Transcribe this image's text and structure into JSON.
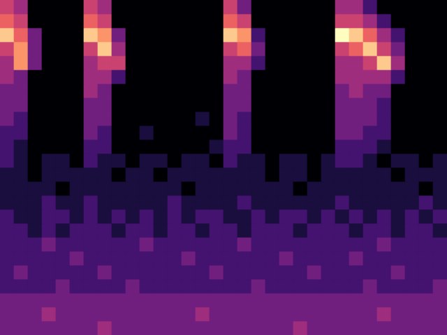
{
  "chart_data": {
    "type": "heatmap",
    "tick_labels": false,
    "grid": false,
    "zlim": [
      0,
      9
    ],
    "cells": [
      [
        5,
        4,
        0,
        0,
        0,
        0,
        5,
        4,
        0,
        0,
        0,
        0,
        0,
        0,
        0,
        0,
        5,
        3,
        0,
        0,
        0,
        0,
        0,
        0,
        4,
        4,
        2,
        0,
        0,
        0,
        0,
        0
      ],
      [
        6,
        5,
        0,
        0,
        0,
        0,
        6,
        5,
        0,
        0,
        0,
        0,
        0,
        0,
        0,
        0,
        6,
        5,
        0,
        0,
        0,
        0,
        0,
        0,
        5,
        5,
        4,
        2,
        0,
        0,
        0,
        0
      ],
      [
        8,
        6,
        3,
        0,
        0,
        0,
        8,
        7,
        3,
        0,
        0,
        0,
        0,
        0,
        0,
        0,
        8,
        7,
        2,
        0,
        0,
        0,
        0,
        0,
        9,
        8,
        6,
        4,
        2,
        0,
        0,
        0
      ],
      [
        5,
        7,
        3,
        0,
        0,
        0,
        5,
        8,
        4,
        0,
        0,
        0,
        0,
        0,
        0,
        0,
        5,
        6,
        3,
        0,
        0,
        0,
        0,
        0,
        5,
        6,
        8,
        5,
        3,
        0,
        0,
        0
      ],
      [
        4,
        7,
        3,
        0,
        0,
        0,
        4,
        5,
        5,
        0,
        0,
        0,
        0,
        0,
        0,
        0,
        4,
        4,
        2,
        0,
        0,
        0,
        0,
        0,
        4,
        4,
        5,
        8,
        4,
        0,
        0,
        0
      ],
      [
        4,
        3,
        0,
        0,
        0,
        0,
        4,
        4,
        2,
        0,
        0,
        0,
        0,
        0,
        0,
        0,
        4,
        3,
        0,
        0,
        0,
        0,
        0,
        0,
        4,
        4,
        4,
        4,
        2,
        0,
        0,
        0
      ],
      [
        3,
        3,
        0,
        0,
        0,
        0,
        4,
        3,
        0,
        0,
        0,
        0,
        0,
        0,
        0,
        0,
        3,
        3,
        0,
        0,
        0,
        0,
        0,
        0,
        3,
        4,
        3,
        3,
        0,
        0,
        0,
        0
      ],
      [
        3,
        3,
        0,
        0,
        0,
        0,
        3,
        3,
        0,
        0,
        0,
        0,
        0,
        0,
        0,
        0,
        3,
        3,
        0,
        0,
        0,
        0,
        0,
        0,
        3,
        3,
        3,
        2,
        0,
        0,
        0,
        0
      ],
      [
        3,
        2,
        0,
        0,
        0,
        0,
        3,
        3,
        0,
        0,
        0,
        0,
        0,
        0,
        1,
        0,
        3,
        2,
        0,
        0,
        0,
        0,
        0,
        0,
        3,
        3,
        3,
        2,
        0,
        0,
        0,
        0
      ],
      [
        2,
        2,
        0,
        0,
        0,
        0,
        3,
        2,
        0,
        0,
        1,
        0,
        0,
        0,
        0,
        0,
        3,
        2,
        0,
        0,
        0,
        0,
        0,
        0,
        3,
        3,
        2,
        2,
        0,
        0,
        0,
        0
      ],
      [
        2,
        1,
        0,
        0,
        0,
        0,
        2,
        2,
        0,
        0,
        0,
        0,
        0,
        0,
        0,
        1,
        2,
        2,
        0,
        0,
        0,
        0,
        0,
        0,
        2,
        2,
        2,
        1,
        0,
        0,
        0,
        0
      ],
      [
        2,
        1,
        0,
        1,
        1,
        0,
        2,
        1,
        1,
        0,
        1,
        1,
        0,
        1,
        1,
        0,
        2,
        1,
        1,
        0,
        1,
        1,
        0,
        1,
        2,
        2,
        1,
        0,
        1,
        1,
        0,
        1
      ],
      [
        1,
        1,
        0,
        1,
        1,
        1,
        1,
        1,
        0,
        1,
        1,
        0,
        1,
        1,
        1,
        1,
        1,
        1,
        1,
        0,
        1,
        1,
        0,
        1,
        1,
        1,
        1,
        1,
        0,
        1,
        1,
        1
      ],
      [
        1,
        1,
        1,
        1,
        0,
        1,
        1,
        1,
        1,
        1,
        1,
        1,
        1,
        0,
        1,
        1,
        1,
        1,
        1,
        1,
        1,
        0,
        1,
        1,
        1,
        1,
        1,
        1,
        1,
        1,
        0,
        1
      ],
      [
        1,
        1,
        1,
        2,
        1,
        1,
        2,
        1,
        1,
        1,
        1,
        1,
        2,
        1,
        1,
        1,
        1,
        2,
        1,
        1,
        1,
        1,
        1,
        1,
        2,
        1,
        1,
        1,
        1,
        1,
        2,
        1
      ],
      [
        2,
        1,
        1,
        2,
        2,
        1,
        2,
        1,
        2,
        1,
        2,
        1,
        2,
        1,
        2,
        2,
        1,
        1,
        2,
        1,
        2,
        2,
        1,
        2,
        1,
        2,
        1,
        2,
        1,
        2,
        1,
        2
      ],
      [
        2,
        2,
        1,
        2,
        1,
        2,
        2,
        2,
        1,
        2,
        2,
        1,
        2,
        2,
        1,
        2,
        2,
        1,
        2,
        2,
        2,
        1,
        2,
        2,
        2,
        1,
        2,
        2,
        1,
        2,
        2,
        1
      ],
      [
        2,
        2,
        2,
        3,
        2,
        2,
        2,
        2,
        2,
        2,
        3,
        2,
        2,
        2,
        2,
        2,
        2,
        3,
        2,
        2,
        2,
        2,
        2,
        2,
        2,
        2,
        2,
        3,
        2,
        2,
        2,
        2
      ],
      [
        2,
        2,
        2,
        2,
        2,
        3,
        2,
        2,
        2,
        2,
        2,
        2,
        2,
        3,
        2,
        2,
        2,
        2,
        2,
        2,
        3,
        2,
        2,
        2,
        2,
        3,
        2,
        2,
        2,
        2,
        2,
        2
      ],
      [
        2,
        3,
        2,
        2,
        2,
        2,
        2,
        3,
        2,
        2,
        2,
        2,
        2,
        2,
        2,
        3,
        2,
        2,
        2,
        2,
        2,
        2,
        3,
        2,
        2,
        2,
        2,
        2,
        3,
        2,
        2,
        2
      ],
      [
        2,
        2,
        2,
        2,
        3,
        2,
        2,
        2,
        2,
        3,
        2,
        2,
        2,
        2,
        2,
        2,
        2,
        2,
        3,
        2,
        2,
        2,
        2,
        2,
        2,
        2,
        3,
        2,
        2,
        2,
        2,
        3
      ],
      [
        3,
        3,
        3,
        3,
        3,
        3,
        3,
        3,
        3,
        3,
        3,
        3,
        3,
        3,
        3,
        3,
        3,
        3,
        3,
        3,
        3,
        3,
        3,
        3,
        3,
        3,
        3,
        3,
        3,
        3,
        3,
        3
      ],
      [
        3,
        3,
        3,
        4,
        3,
        3,
        3,
        3,
        3,
        3,
        3,
        3,
        3,
        3,
        4,
        3,
        3,
        3,
        3,
        3,
        3,
        3,
        3,
        3,
        3,
        3,
        3,
        4,
        3,
        3,
        3,
        3
      ],
      [
        3,
        3,
        3,
        3,
        3,
        3,
        3,
        4,
        3,
        3,
        3,
        3,
        3,
        3,
        3,
        3,
        3,
        3,
        3,
        3,
        3,
        4,
        3,
        3,
        3,
        3,
        3,
        3,
        3,
        3,
        3,
        3
      ]
    ]
  }
}
